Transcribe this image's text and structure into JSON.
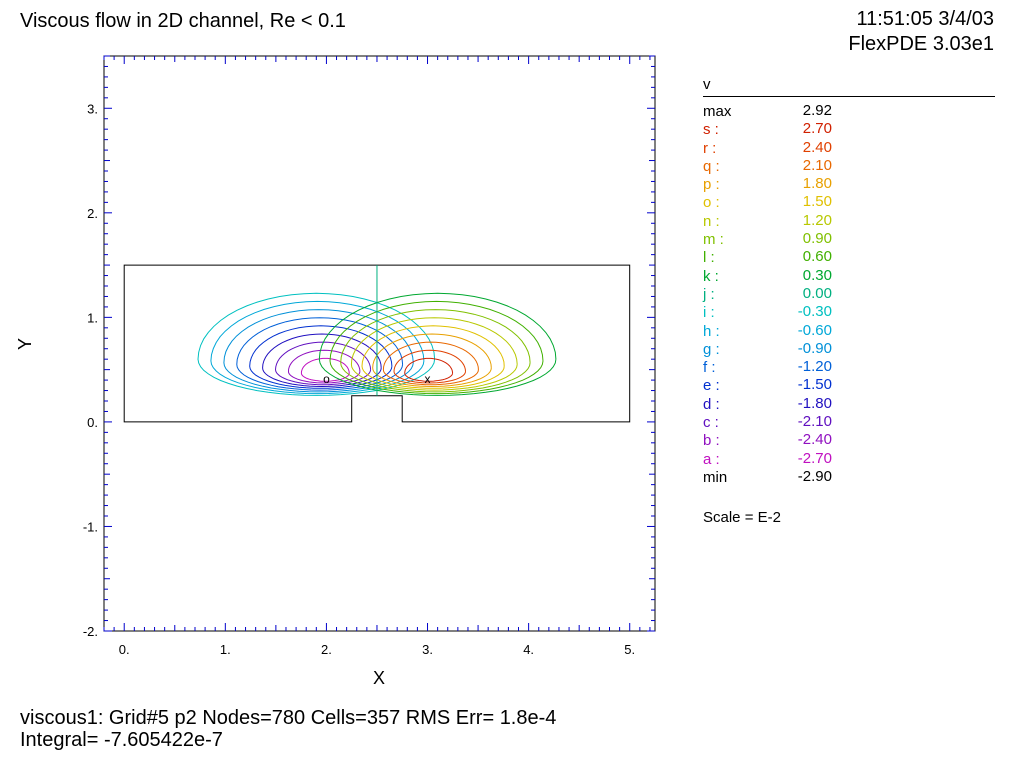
{
  "header": {
    "title": "Viscous flow in 2D channel, Re < 0.1",
    "timestamp": "11:51:05 3/4/03",
    "app_version": "FlexPDE 3.03e1"
  },
  "footer": {
    "line1": "viscous1:  Grid#5  p2  Nodes=780 Cells=357 RMS Err= 1.8e-4",
    "line2": "Integral= -7.605422e-7"
  },
  "chart_data": {
    "type": "contour",
    "variable": "v",
    "xlabel": "X",
    "ylabel": "Y",
    "xlim": [
      -0.2,
      5.25
    ],
    "ylim": [
      -2.0,
      3.5
    ],
    "x_ticks": [
      "0.",
      "1.",
      "2.",
      "3.",
      "4.",
      "5."
    ],
    "y_ticks": [
      "3.",
      "2.",
      "1.",
      "0.",
      "-1.",
      "-2."
    ],
    "x_tick_values": [
      0,
      1,
      2,
      3,
      4,
      5
    ],
    "y_tick_values": [
      3,
      2,
      1,
      0,
      -1,
      -2
    ],
    "domain_outline": [
      [
        0,
        0
      ],
      [
        2.25,
        0
      ],
      [
        2.25,
        0.25
      ],
      [
        2.75,
        0.25
      ],
      [
        2.75,
        0
      ],
      [
        5,
        0
      ],
      [
        5,
        1.5
      ],
      [
        0,
        1.5
      ]
    ],
    "extrema": {
      "min_marker": {
        "label": "o",
        "x": 2.0,
        "y": 0.42
      },
      "max_marker": {
        "label": "x",
        "x": 3.0,
        "y": 0.42
      }
    },
    "legend": [
      {
        "label": "max",
        "value": "2.92",
        "color": "#000000"
      },
      {
        "label": "s :",
        "value": "2.70",
        "color": "#d02000"
      },
      {
        "label": "r :",
        "value": "2.40",
        "color": "#e04000"
      },
      {
        "label": "q :",
        "value": "2.10",
        "color": "#e86800"
      },
      {
        "label": "p :",
        "value": "1.80",
        "color": "#e8a000"
      },
      {
        "label": "o :",
        "value": "1.50",
        "color": "#e0c000"
      },
      {
        "label": "n :",
        "value": "1.20",
        "color": "#b8c800"
      },
      {
        "label": "m :",
        "value": "0.90",
        "color": "#80c000"
      },
      {
        "label": "l :",
        "value": "0.60",
        "color": "#40b000"
      },
      {
        "label": "k :",
        "value": "0.30",
        "color": "#00a830"
      },
      {
        "label": "j :",
        "value": "0.00",
        "color": "#00b080"
      },
      {
        "label": "i :",
        "value": "-0.30",
        "color": "#00c0c0"
      },
      {
        "label": "h :",
        "value": "-0.60",
        "color": "#00a8d8"
      },
      {
        "label": "g :",
        "value": "-0.90",
        "color": "#0090d8"
      },
      {
        "label": "f :",
        "value": "-1.20",
        "color": "#0060d8"
      },
      {
        "label": "e :",
        "value": "-1.50",
        "color": "#0030d0"
      },
      {
        "label": "d :",
        "value": "-1.80",
        "color": "#2010c0"
      },
      {
        "label": "c :",
        "value": "-2.10",
        "color": "#6010c0"
      },
      {
        "label": "b :",
        "value": "-2.40",
        "color": "#9010c0"
      },
      {
        "label": "a :",
        "value": "-2.70",
        "color": "#c010c0"
      },
      {
        "label": "min",
        "value": "-2.90",
        "color": "#000000"
      }
    ],
    "scale_note": "Scale = E-2"
  }
}
